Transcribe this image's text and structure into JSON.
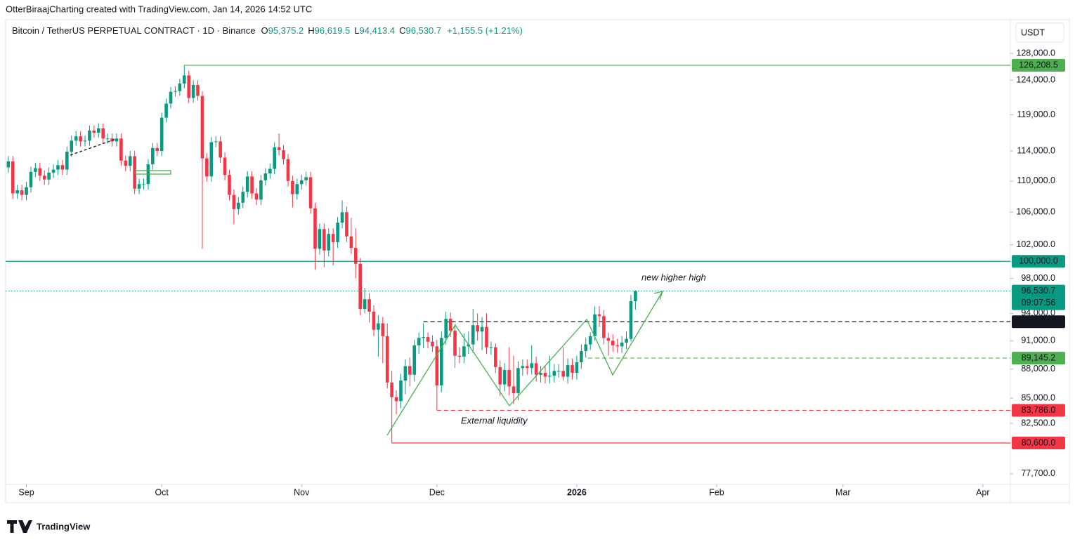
{
  "header": "OtterBiraajCharting created with TradingView.com, Jan 14, 2026 14:52 UTC",
  "legend": {
    "symbol": "Bitcoin / TetherUS PERPETUAL CONTRACT · 1D · Binance",
    "items": [
      {
        "key": "O",
        "value": "95,375.2"
      },
      {
        "key": "H",
        "value": "96,619.5"
      },
      {
        "key": "L",
        "value": "94,413.4"
      },
      {
        "key": "C",
        "value": "96,530.7"
      }
    ],
    "change": "+1,155.5 (+1.21%)"
  },
  "currency": "USDT",
  "countdown": "09:07:56",
  "brand": "TradingView",
  "chart_data": {
    "type": "candlestick",
    "log_scale": true,
    "grid": false,
    "up_color": "#089981",
    "down_color": "#f23645",
    "xlim": [
      -0.6,
      222.1
    ],
    "ylim": [
      76730,
      129940
    ],
    "xticks": [
      {
        "value": 4,
        "label": "Sep"
      },
      {
        "value": 34,
        "label": "Oct"
      },
      {
        "value": 65,
        "label": "Nov"
      },
      {
        "value": 95,
        "label": "Dec"
      },
      {
        "value": 126,
        "label": "2026"
      },
      {
        "value": 157,
        "label": "Feb"
      },
      {
        "value": 185,
        "label": "Mar"
      },
      {
        "value": 216,
        "label": "Apr"
      }
    ],
    "yticks": [
      {
        "value": 128000,
        "label": "128,000.0"
      },
      {
        "value": 124000,
        "label": "124,000.0"
      },
      {
        "value": 119000,
        "label": "119,000.0"
      },
      {
        "value": 114000,
        "label": "114,000.0"
      },
      {
        "value": 110000,
        "label": "110,000.0"
      },
      {
        "value": 106000,
        "label": "106,000.0"
      },
      {
        "value": 102000,
        "label": "102,000.0"
      },
      {
        "value": 98000,
        "label": "98,000.0"
      },
      {
        "value": 94000,
        "label": "94,000.0"
      },
      {
        "value": 91000,
        "label": "91,000.0"
      },
      {
        "value": 88000,
        "label": "88,000.0"
      },
      {
        "value": 85000,
        "label": "85,000.0"
      },
      {
        "value": 82500,
        "label": "82,500.0"
      },
      {
        "value": 77700,
        "label": "77,700.0"
      }
    ],
    "ohlc": [
      [
        111800,
        113300,
        111100,
        112600
      ],
      [
        112600,
        113300,
        107700,
        108400
      ],
      [
        108400,
        109500,
        107700,
        108800
      ],
      [
        108800,
        109500,
        107500,
        108200
      ],
      [
        108200,
        109900,
        107500,
        109200
      ],
      [
        109200,
        111900,
        108500,
        111200
      ],
      [
        111200,
        112400,
        110500,
        111700
      ],
      [
        111700,
        112400,
        110000,
        110700
      ],
      [
        110700,
        111400,
        109500,
        110200
      ],
      [
        110200,
        111800,
        109500,
        111100
      ],
      [
        111100,
        112200,
        110400,
        111500
      ],
      [
        111500,
        112800,
        110800,
        112100
      ],
      [
        112100,
        112800,
        110800,
        111500
      ],
      [
        111500,
        114600,
        110800,
        113900
      ],
      [
        113900,
        116100,
        113200,
        115400
      ],
      [
        115400,
        116700,
        114700,
        116000
      ],
      [
        116000,
        116700,
        114600,
        115300
      ],
      [
        115300,
        116100,
        114600,
        115400
      ],
      [
        115400,
        117500,
        114700,
        116800
      ],
      [
        116800,
        117500,
        115800,
        116500
      ],
      [
        116500,
        117800,
        115800,
        117100
      ],
      [
        117100,
        117800,
        115000,
        115700
      ],
      [
        115700,
        116400,
        115000,
        115700
      ],
      [
        115700,
        116400,
        114600,
        115300
      ],
      [
        115300,
        116400,
        114600,
        115700
      ],
      [
        115700,
        116400,
        112000,
        112700
      ],
      [
        112700,
        113400,
        111300,
        112000
      ],
      [
        112000,
        114000,
        111300,
        113300
      ],
      [
        113300,
        114000,
        108300,
        109000
      ],
      [
        109000,
        110300,
        108300,
        109600
      ],
      [
        109600,
        110300,
        108900,
        109600
      ],
      [
        109600,
        112900,
        108900,
        112200
      ],
      [
        112200,
        115100,
        111500,
        114400
      ],
      [
        114400,
        115100,
        113300,
        114000
      ],
      [
        114000,
        119300,
        113300,
        118600
      ],
      [
        118600,
        121300,
        117900,
        120600
      ],
      [
        120600,
        123000,
        119900,
        122300
      ],
      [
        122300,
        123100,
        121600,
        122400
      ],
      [
        122400,
        124200,
        121700,
        123500
      ],
      [
        123500,
        126208.5,
        122800,
        124700
      ],
      [
        124700,
        125400,
        120700,
        121400
      ],
      [
        121400,
        124000,
        120700,
        123300
      ],
      [
        123300,
        124000,
        121000,
        121700
      ],
      [
        121700,
        122400,
        101500,
        113000
      ],
      [
        113000,
        113700,
        109900,
        110600
      ],
      [
        110600,
        115900,
        109900,
        115200
      ],
      [
        115200,
        116000,
        114500,
        115300
      ],
      [
        115300,
        116000,
        112400,
        113100
      ],
      [
        113100,
        113800,
        110100,
        110800
      ],
      [
        110800,
        111500,
        107500,
        108200
      ],
      [
        108200,
        108900,
        104500,
        106400
      ],
      [
        106400,
        107900,
        105700,
        107200
      ],
      [
        107200,
        109300,
        106500,
        108600
      ],
      [
        108600,
        111300,
        107900,
        110600
      ],
      [
        110600,
        111300,
        107700,
        108400
      ],
      [
        108400,
        109100,
        106900,
        107600
      ],
      [
        107600,
        110800,
        106900,
        110100
      ],
      [
        110100,
        111700,
        109400,
        111000
      ],
      [
        111000,
        112300,
        110300,
        111600
      ],
      [
        111600,
        115200,
        110900,
        114500
      ],
      [
        114500,
        116400,
        113400,
        114100
      ],
      [
        114100,
        114800,
        112200,
        112900
      ],
      [
        112900,
        113600,
        109300,
        110000
      ],
      [
        110000,
        110700,
        106600,
        108300
      ],
      [
        108300,
        110300,
        107600,
        109600
      ],
      [
        109600,
        110800,
        108900,
        110100
      ],
      [
        110100,
        111200,
        109400,
        110500
      ],
      [
        110500,
        111200,
        105800,
        106500
      ],
      [
        106500,
        107200,
        99000,
        101500
      ],
      [
        101500,
        104600,
        100800,
        103900
      ],
      [
        103900,
        104600,
        99300,
        101300
      ],
      [
        101300,
        104000,
        100600,
        103300
      ],
      [
        103300,
        104000,
        99500,
        102300
      ],
      [
        102300,
        105400,
        101600,
        104700
      ],
      [
        104700,
        107500,
        104000,
        106000
      ],
      [
        106000,
        106700,
        102300,
        103000
      ],
      [
        103000,
        105300,
        100900,
        101600
      ],
      [
        101600,
        104000,
        98000,
        99700
      ],
      [
        99700,
        100400,
        93800,
        94500
      ],
      [
        94500,
        96900,
        94000,
        95600
      ],
      [
        95600,
        96300,
        93000,
        94200
      ],
      [
        94200,
        94900,
        91500,
        92200
      ],
      [
        92200,
        93800,
        89300,
        92900
      ],
      [
        92900,
        93600,
        88600,
        91500
      ],
      [
        91500,
        92900,
        86000,
        86600
      ],
      [
        86600,
        87800,
        80600,
        85100
      ],
      [
        85100,
        85800,
        83400,
        84700
      ],
      [
        84700,
        87500,
        84000,
        86800
      ],
      [
        86800,
        89000,
        85400,
        88300
      ],
      [
        88300,
        89200,
        86200,
        87400
      ],
      [
        87400,
        91100,
        86700,
        90500
      ],
      [
        90500,
        91900,
        89600,
        91300
      ],
      [
        91300,
        92900,
        90200,
        91400
      ],
      [
        91400,
        91900,
        90200,
        90900
      ],
      [
        90900,
        91600,
        89800,
        90400
      ],
      [
        90400,
        91100,
        83786,
        86300
      ],
      [
        86300,
        92000,
        85600,
        91300
      ],
      [
        91300,
        94200,
        90600,
        93400
      ],
      [
        93400,
        94100,
        91400,
        92100
      ],
      [
        92100,
        92800,
        88100,
        89400
      ],
      [
        89400,
        90300,
        88600,
        89300
      ],
      [
        89300,
        91800,
        88600,
        90400
      ],
      [
        90400,
        92000,
        89600,
        90600
      ],
      [
        90600,
        94500,
        89700,
        92700
      ],
      [
        92700,
        94000,
        91000,
        92000
      ],
      [
        92000,
        93600,
        90000,
        92500
      ],
      [
        92500,
        94000,
        89600,
        90300
      ],
      [
        90300,
        90900,
        89500,
        90300
      ],
      [
        90300,
        90700,
        87600,
        88200
      ],
      [
        88200,
        88900,
        85200,
        86400
      ],
      [
        86400,
        88600,
        85700,
        87900
      ],
      [
        87900,
        90300,
        85300,
        86200
      ],
      [
        86200,
        89400,
        84400,
        85500
      ],
      [
        85500,
        88800,
        84800,
        88100
      ],
      [
        88100,
        89000,
        87300,
        88300
      ],
      [
        88300,
        89000,
        87400,
        88100
      ],
      [
        88100,
        90500,
        87400,
        88600
      ],
      [
        88600,
        89300,
        86700,
        87400
      ],
      [
        87400,
        88300,
        86600,
        87600
      ],
      [
        87600,
        88300,
        86500,
        87200
      ],
      [
        87200,
        89400,
        86500,
        87300
      ],
      [
        87300,
        88500,
        86600,
        87800
      ],
      [
        87800,
        88500,
        87100,
        87800
      ],
      [
        87800,
        90300,
        86800,
        87200
      ],
      [
        87200,
        89100,
        86500,
        88400
      ],
      [
        88400,
        89100,
        86900,
        87600
      ],
      [
        87600,
        89400,
        86900,
        88700
      ],
      [
        88700,
        90600,
        88000,
        89900
      ],
      [
        89900,
        91300,
        89200,
        90600
      ],
      [
        90600,
        91900,
        90000,
        91500
      ],
      [
        91500,
        94800,
        91000,
        93900
      ],
      [
        93900,
        94800,
        92500,
        93700
      ],
      [
        93700,
        94400,
        90600,
        91300
      ],
      [
        91300,
        91900,
        89400,
        91000
      ],
      [
        91000,
        91700,
        89800,
        90500
      ],
      [
        90500,
        91200,
        89700,
        90400
      ],
      [
        90400,
        91500,
        89700,
        90800
      ],
      [
        90800,
        92000,
        90100,
        91200
      ],
      [
        91200,
        96100,
        90900,
        95375.2
      ],
      [
        95375.2,
        96619.5,
        94413.4,
        96530.7
      ]
    ],
    "levels": [
      {
        "value": 126208.5,
        "label": "126,208.5",
        "color": "#4caf50",
        "style": "solid",
        "from": 39
      },
      {
        "value": 100000,
        "label": "100,000.0",
        "color": "#089981",
        "style": "solid"
      },
      {
        "value": 96530.7,
        "label": "96,530.7",
        "color": "#089981",
        "style": "dotted"
      },
      {
        "value": 93080,
        "label": "93,080.0",
        "color": "#131722",
        "style": "dashed",
        "from": 92
      },
      {
        "value": 89145.2,
        "label": "89,145.2",
        "color": "#4caf50",
        "style": "dashed",
        "from": 128.5
      },
      {
        "value": 83786,
        "label": "83,786.0",
        "color": "#f23645",
        "style": "dashed",
        "from": 95
      },
      {
        "value": 80600,
        "label": "80,600.0",
        "color": "#f23645",
        "style": "solid",
        "from": 85
      }
    ],
    "annotations": [
      {
        "text": "new higher high",
        "color": "#4caf50"
      },
      {
        "text": "External liquidity",
        "color": "#f23645"
      }
    ]
  }
}
